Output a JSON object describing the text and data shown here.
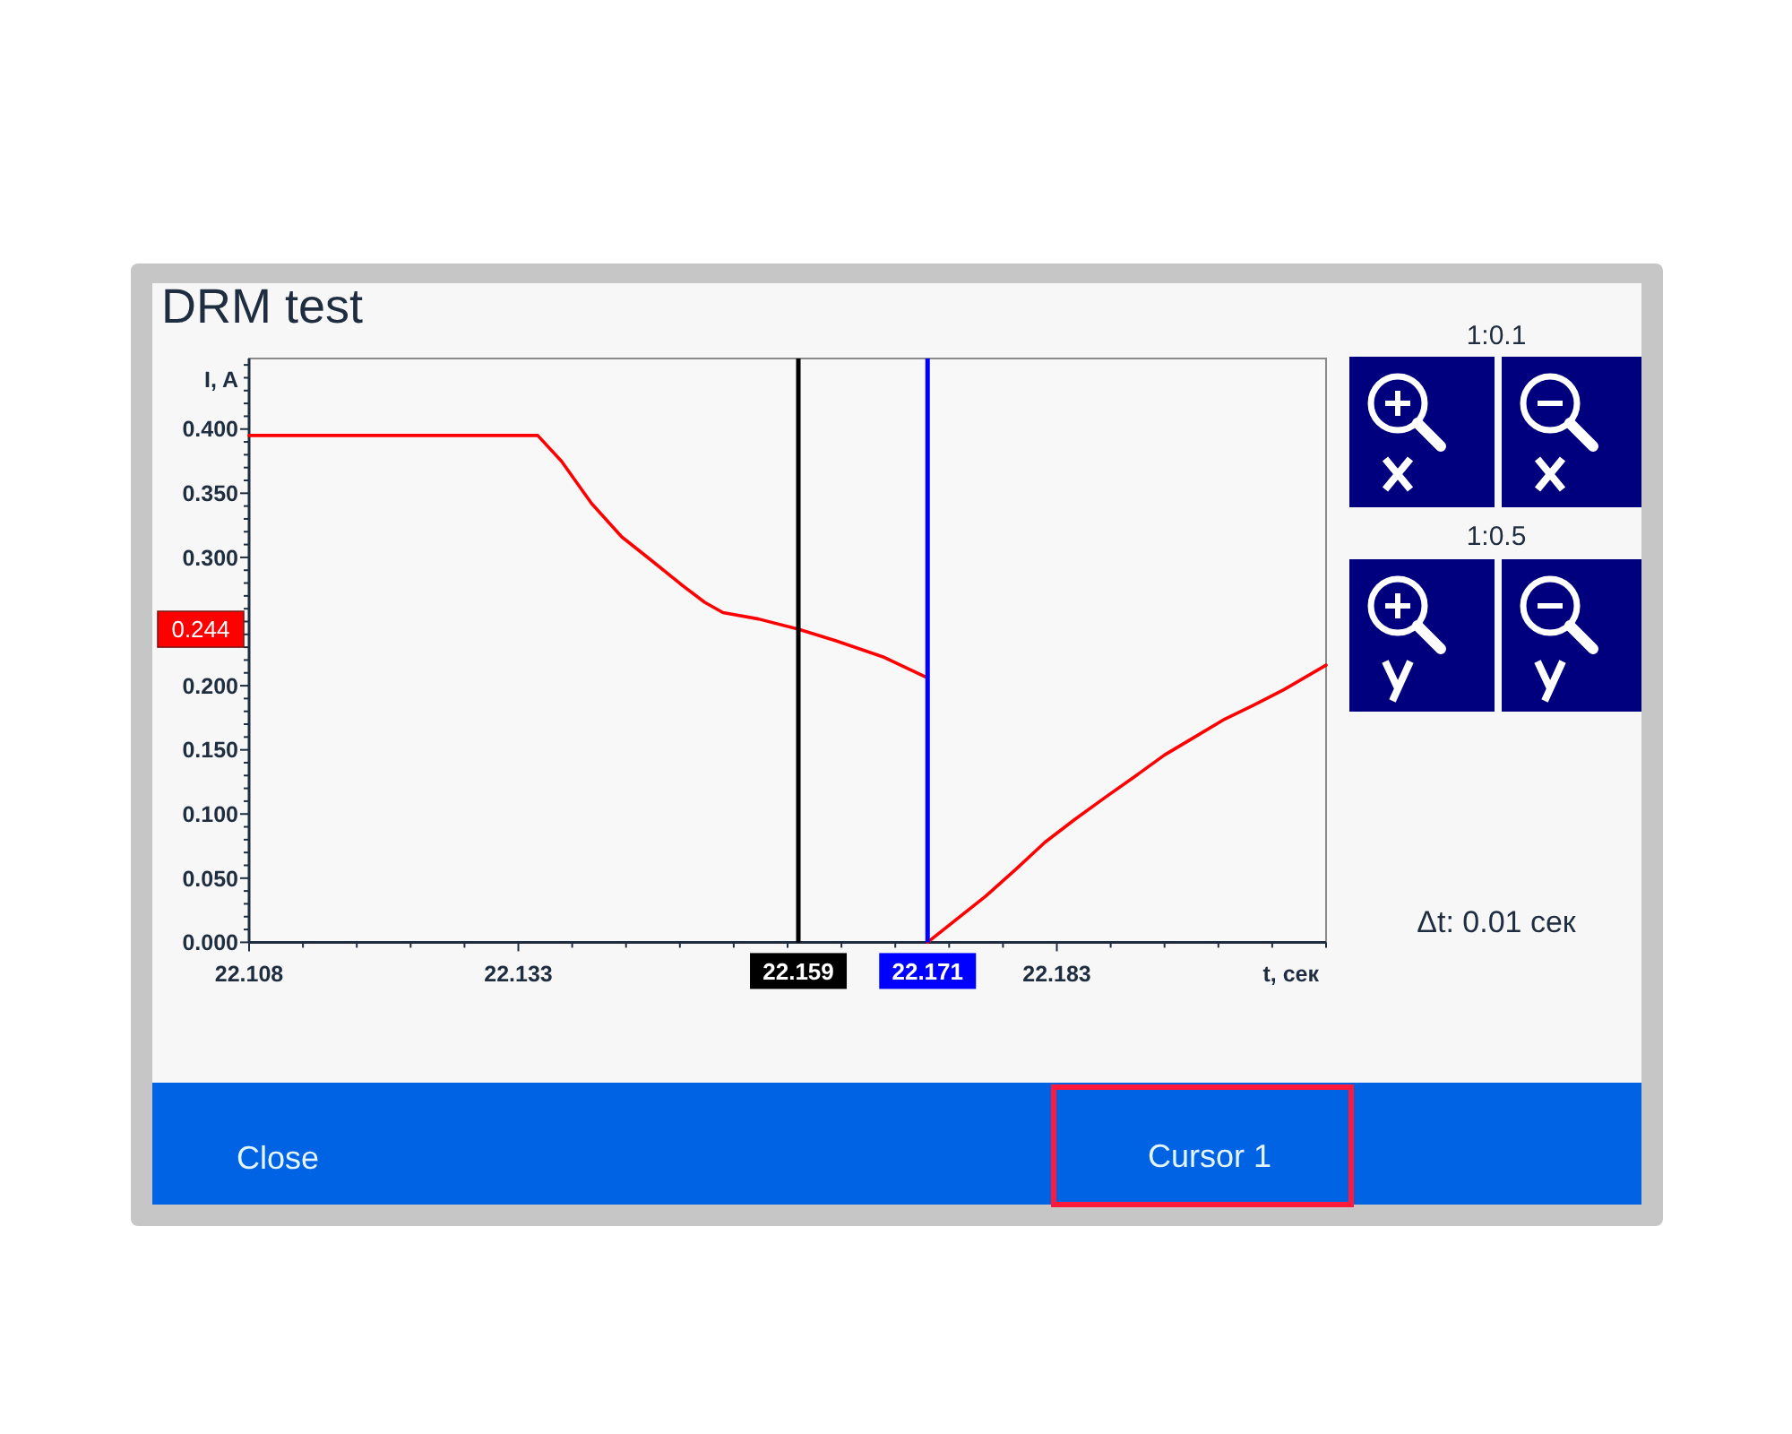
{
  "chart_data": {
    "type": "line",
    "title": "DRM test",
    "xlabel": "t, сек",
    "ylabel": "I, A",
    "x": [
      22.108,
      22.12,
      22.1348,
      22.137,
      22.1398,
      22.1426,
      22.1453,
      22.1481,
      22.1503,
      22.152,
      22.1553,
      22.159,
      22.1625,
      22.167,
      22.171,
      22.171,
      22.1764,
      22.1792,
      22.1819,
      22.1847,
      22.1875,
      22.1902,
      22.193,
      22.1958,
      22.1986,
      22.2013,
      22.2041,
      22.208
    ],
    "series": [
      {
        "color": "#ff0000",
        "values": [
          0.395,
          0.395,
          0.395,
          0.375,
          0.342,
          0.316,
          0.298,
          0.279,
          0.265,
          0.257,
          0.252,
          0.244,
          0.235,
          0.222,
          0.206,
          0.0,
          0.036,
          0.057,
          0.078,
          0.096,
          0.113,
          0.129,
          0.146,
          0.16,
          0.174,
          0.185,
          0.197,
          0.216
        ]
      }
    ],
    "xlim": [
      22.108,
      22.208
    ],
    "ylim": [
      0,
      0.455
    ],
    "xticks": [
      22.108,
      {
        "value": 22.113,
        "label": null
      },
      {
        "value": 22.118,
        "label": null
      },
      {
        "value": 22.123,
        "label": null
      },
      {
        "value": 22.128,
        "label": null
      },
      22.133,
      {
        "value": 22.138,
        "label": null
      },
      {
        "value": 22.143,
        "label": null
      },
      {
        "value": 22.148,
        "label": null
      },
      {
        "value": 22.153,
        "label": null
      },
      {
        "value": 22.158,
        "label": null
      },
      {
        "value": 22.163,
        "label": null
      },
      {
        "value": 22.168,
        "label": null
      },
      {
        "value": 22.173,
        "label": null
      },
      {
        "value": 22.178,
        "label": null
      },
      22.183,
      {
        "value": 22.188,
        "label": null
      },
      {
        "value": 22.193,
        "label": null
      },
      {
        "value": 22.198,
        "label": null
      },
      {
        "value": 22.203,
        "label": null
      },
      {
        "value": 22.208,
        "label": null
      }
    ],
    "yticks": [
      {
        "value": 0,
        "label": "0.000"
      },
      {
        "value": 0.01,
        "label": null
      },
      {
        "value": 0.02,
        "label": null
      },
      {
        "value": 0.03,
        "label": null
      },
      {
        "value": 0.04,
        "label": null
      },
      {
        "value": 0.05,
        "label": "0.050"
      },
      {
        "value": 0.06,
        "label": null
      },
      {
        "value": 0.07,
        "label": null
      },
      {
        "value": 0.08,
        "label": null
      },
      {
        "value": 0.09,
        "label": null
      },
      {
        "value": 0.1,
        "label": "0.100"
      },
      {
        "value": 0.11,
        "label": null
      },
      {
        "value": 0.12,
        "label": null
      },
      {
        "value": 0.13,
        "label": null
      },
      {
        "value": 0.14,
        "label": null
      },
      {
        "value": 0.15,
        "label": "0.150"
      },
      {
        "value": 0.16,
        "label": null
      },
      {
        "value": 0.17,
        "label": null
      },
      {
        "value": 0.18,
        "label": null
      },
      {
        "value": 0.19,
        "label": null
      },
      {
        "value": 0.2,
        "label": "0.200"
      },
      {
        "value": 0.21,
        "label": null
      },
      {
        "value": 0.22,
        "label": null
      },
      {
        "value": 0.23,
        "label": null
      },
      {
        "value": 0.24,
        "label": null
      },
      {
        "value": 0.25,
        "label": null
      },
      {
        "value": 0.26,
        "label": null
      },
      {
        "value": 0.27,
        "label": null
      },
      {
        "value": 0.28,
        "label": null
      },
      {
        "value": 0.29,
        "label": null
      },
      {
        "value": 0.3,
        "label": "0.300"
      },
      {
        "value": 0.31,
        "label": null
      },
      {
        "value": 0.32,
        "label": null
      },
      {
        "value": 0.33,
        "label": null
      },
      {
        "value": 0.34,
        "label": null
      },
      {
        "value": 0.35,
        "label": "0.350"
      },
      {
        "value": 0.36,
        "label": null
      },
      {
        "value": 0.37,
        "label": null
      },
      {
        "value": 0.38,
        "label": null
      },
      {
        "value": 0.39,
        "label": null
      },
      {
        "value": 0.4,
        "label": "0.400"
      },
      {
        "value": 0.41,
        "label": null
      },
      {
        "value": 0.42,
        "label": null
      },
      {
        "value": 0.43,
        "label": null
      },
      {
        "value": 0.44,
        "label": null
      },
      {
        "value": 0.45,
        "label": null
      }
    ],
    "ref_lines": [
      {
        "axis": "x",
        "value": 22.159,
        "label": "22.159",
        "color": "#000000"
      },
      {
        "axis": "x",
        "value": 22.171,
        "label": "22.171",
        "color": "#0000ff"
      }
    ],
    "annotations": [
      "1:0.1",
      "1:0.5",
      "Δt: 0.01 сек",
      "Close",
      "Cursor 1",
      "0.244"
    ]
  }
}
